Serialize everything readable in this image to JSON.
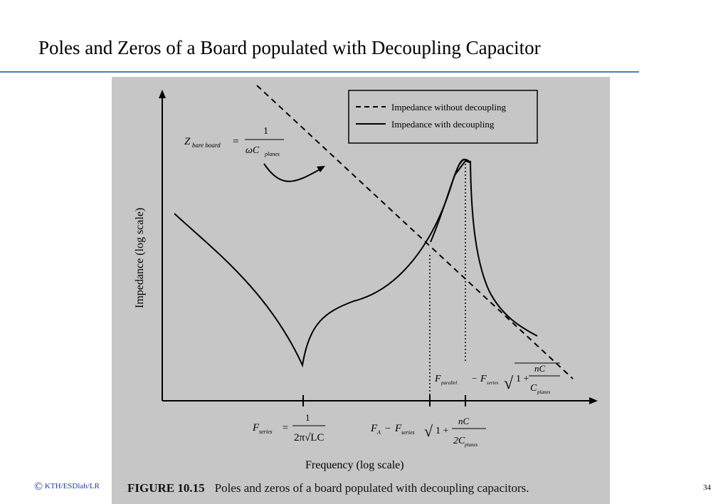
{
  "slide": {
    "title": "Poles and Zeros of a Board populated with Decoupling Capacitor",
    "footer": "KTH/ESDlab/LR",
    "page_number": "34",
    "accent_color": "#4a7ebb"
  },
  "figure": {
    "caption_label": "FIGURE 10.15",
    "caption_text": "Poles and zeros of a board populated with decoupling capacitors.",
    "background": "#c6c6c6"
  },
  "chart_data": {
    "type": "line",
    "xlabel": "Frequency (log scale)",
    "ylabel": "Impedance (log scale)",
    "x_scale": "log",
    "y_scale": "log",
    "grid": false,
    "legend_position": "top-right",
    "series": [
      {
        "name": "Impedance without decoupling",
        "style": "dashed",
        "color": "#000000"
      },
      {
        "name": "Impedance with decoupling",
        "style": "solid",
        "color": "#000000"
      }
    ],
    "annotations": {
      "bare_board": {
        "lhs": "Z",
        "lhs_sub": "bare board",
        "num": "1",
        "den": "ωC",
        "den_sub": "planes"
      },
      "f_series": {
        "lhs": "F",
        "lhs_sub": "series",
        "num": "1",
        "den": "2π√LC"
      },
      "f_a": {
        "lhs": "F",
        "lhs_sub": "A",
        "rhs": "F",
        "rhs_sub": "series",
        "num": "nC",
        "den": "2C",
        "den_sub": "planes"
      },
      "f_parallel": {
        "lhs": "F",
        "lhs_sub": "parallel",
        "rhs": "F",
        "rhs_sub": "series",
        "num": "nC",
        "den": "C",
        "den_sub": "planes"
      }
    }
  }
}
